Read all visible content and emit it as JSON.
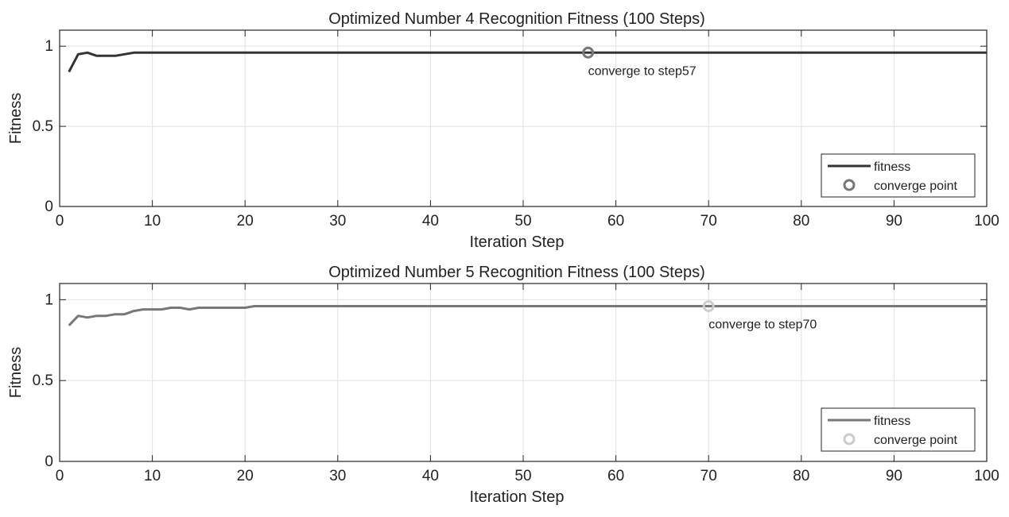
{
  "chart_data": [
    {
      "type": "line",
      "title": "Optimized Number 4 Recognition Fitness (100 Steps)",
      "xlabel": "Iteration Step",
      "ylabel": "Fitness",
      "xlim": [
        0,
        100
      ],
      "ylim": [
        0,
        1.1
      ],
      "xticks": [
        0,
        10,
        20,
        30,
        40,
        50,
        60,
        70,
        80,
        90,
        100
      ],
      "yticks": [
        0,
        0.5,
        1
      ],
      "ytick_labels": [
        "0",
        "0.5",
        "1"
      ],
      "grid": true,
      "legend_position": "bottom-right",
      "series": [
        {
          "name": "fitness",
          "color": "#333333",
          "x": [
            1,
            2,
            3,
            4,
            5,
            6,
            7,
            8,
            9,
            10,
            20,
            30,
            40,
            50,
            57,
            60,
            70,
            80,
            90,
            100
          ],
          "y": [
            0.84,
            0.95,
            0.96,
            0.94,
            0.94,
            0.94,
            0.95,
            0.96,
            0.96,
            0.96,
            0.96,
            0.96,
            0.96,
            0.96,
            0.96,
            0.96,
            0.96,
            0.96,
            0.96,
            0.96
          ]
        }
      ],
      "converge": {
        "name": "converge point",
        "x": 57,
        "y": 0.96,
        "color": "#777777",
        "label": "converge to step57"
      }
    },
    {
      "type": "line",
      "title": "Optimized Number 5 Recognition Fitness (100 Steps)",
      "xlabel": "Iteration Step",
      "ylabel": "Fitness",
      "xlim": [
        0,
        100
      ],
      "ylim": [
        0,
        1.1
      ],
      "xticks": [
        0,
        10,
        20,
        30,
        40,
        50,
        60,
        70,
        80,
        90,
        100
      ],
      "yticks": [
        0,
        0.5,
        1
      ],
      "ytick_labels": [
        "0",
        "0.5",
        "1"
      ],
      "grid": true,
      "legend_position": "bottom-right",
      "series": [
        {
          "name": "fitness",
          "color": "#777777",
          "x": [
            1,
            2,
            3,
            4,
            5,
            6,
            7,
            8,
            9,
            10,
            11,
            12,
            13,
            14,
            15,
            16,
            17,
            18,
            19,
            20,
            21,
            30,
            40,
            50,
            60,
            70,
            80,
            90,
            100
          ],
          "y": [
            0.84,
            0.9,
            0.89,
            0.9,
            0.9,
            0.91,
            0.91,
            0.93,
            0.94,
            0.94,
            0.94,
            0.95,
            0.95,
            0.94,
            0.95,
            0.95,
            0.95,
            0.95,
            0.95,
            0.95,
            0.96,
            0.96,
            0.96,
            0.96,
            0.96,
            0.96,
            0.96,
            0.96,
            0.96
          ]
        }
      ],
      "converge": {
        "name": "converge point",
        "x": 70,
        "y": 0.96,
        "color": "#cccccc",
        "label": "converge to step70"
      }
    }
  ]
}
